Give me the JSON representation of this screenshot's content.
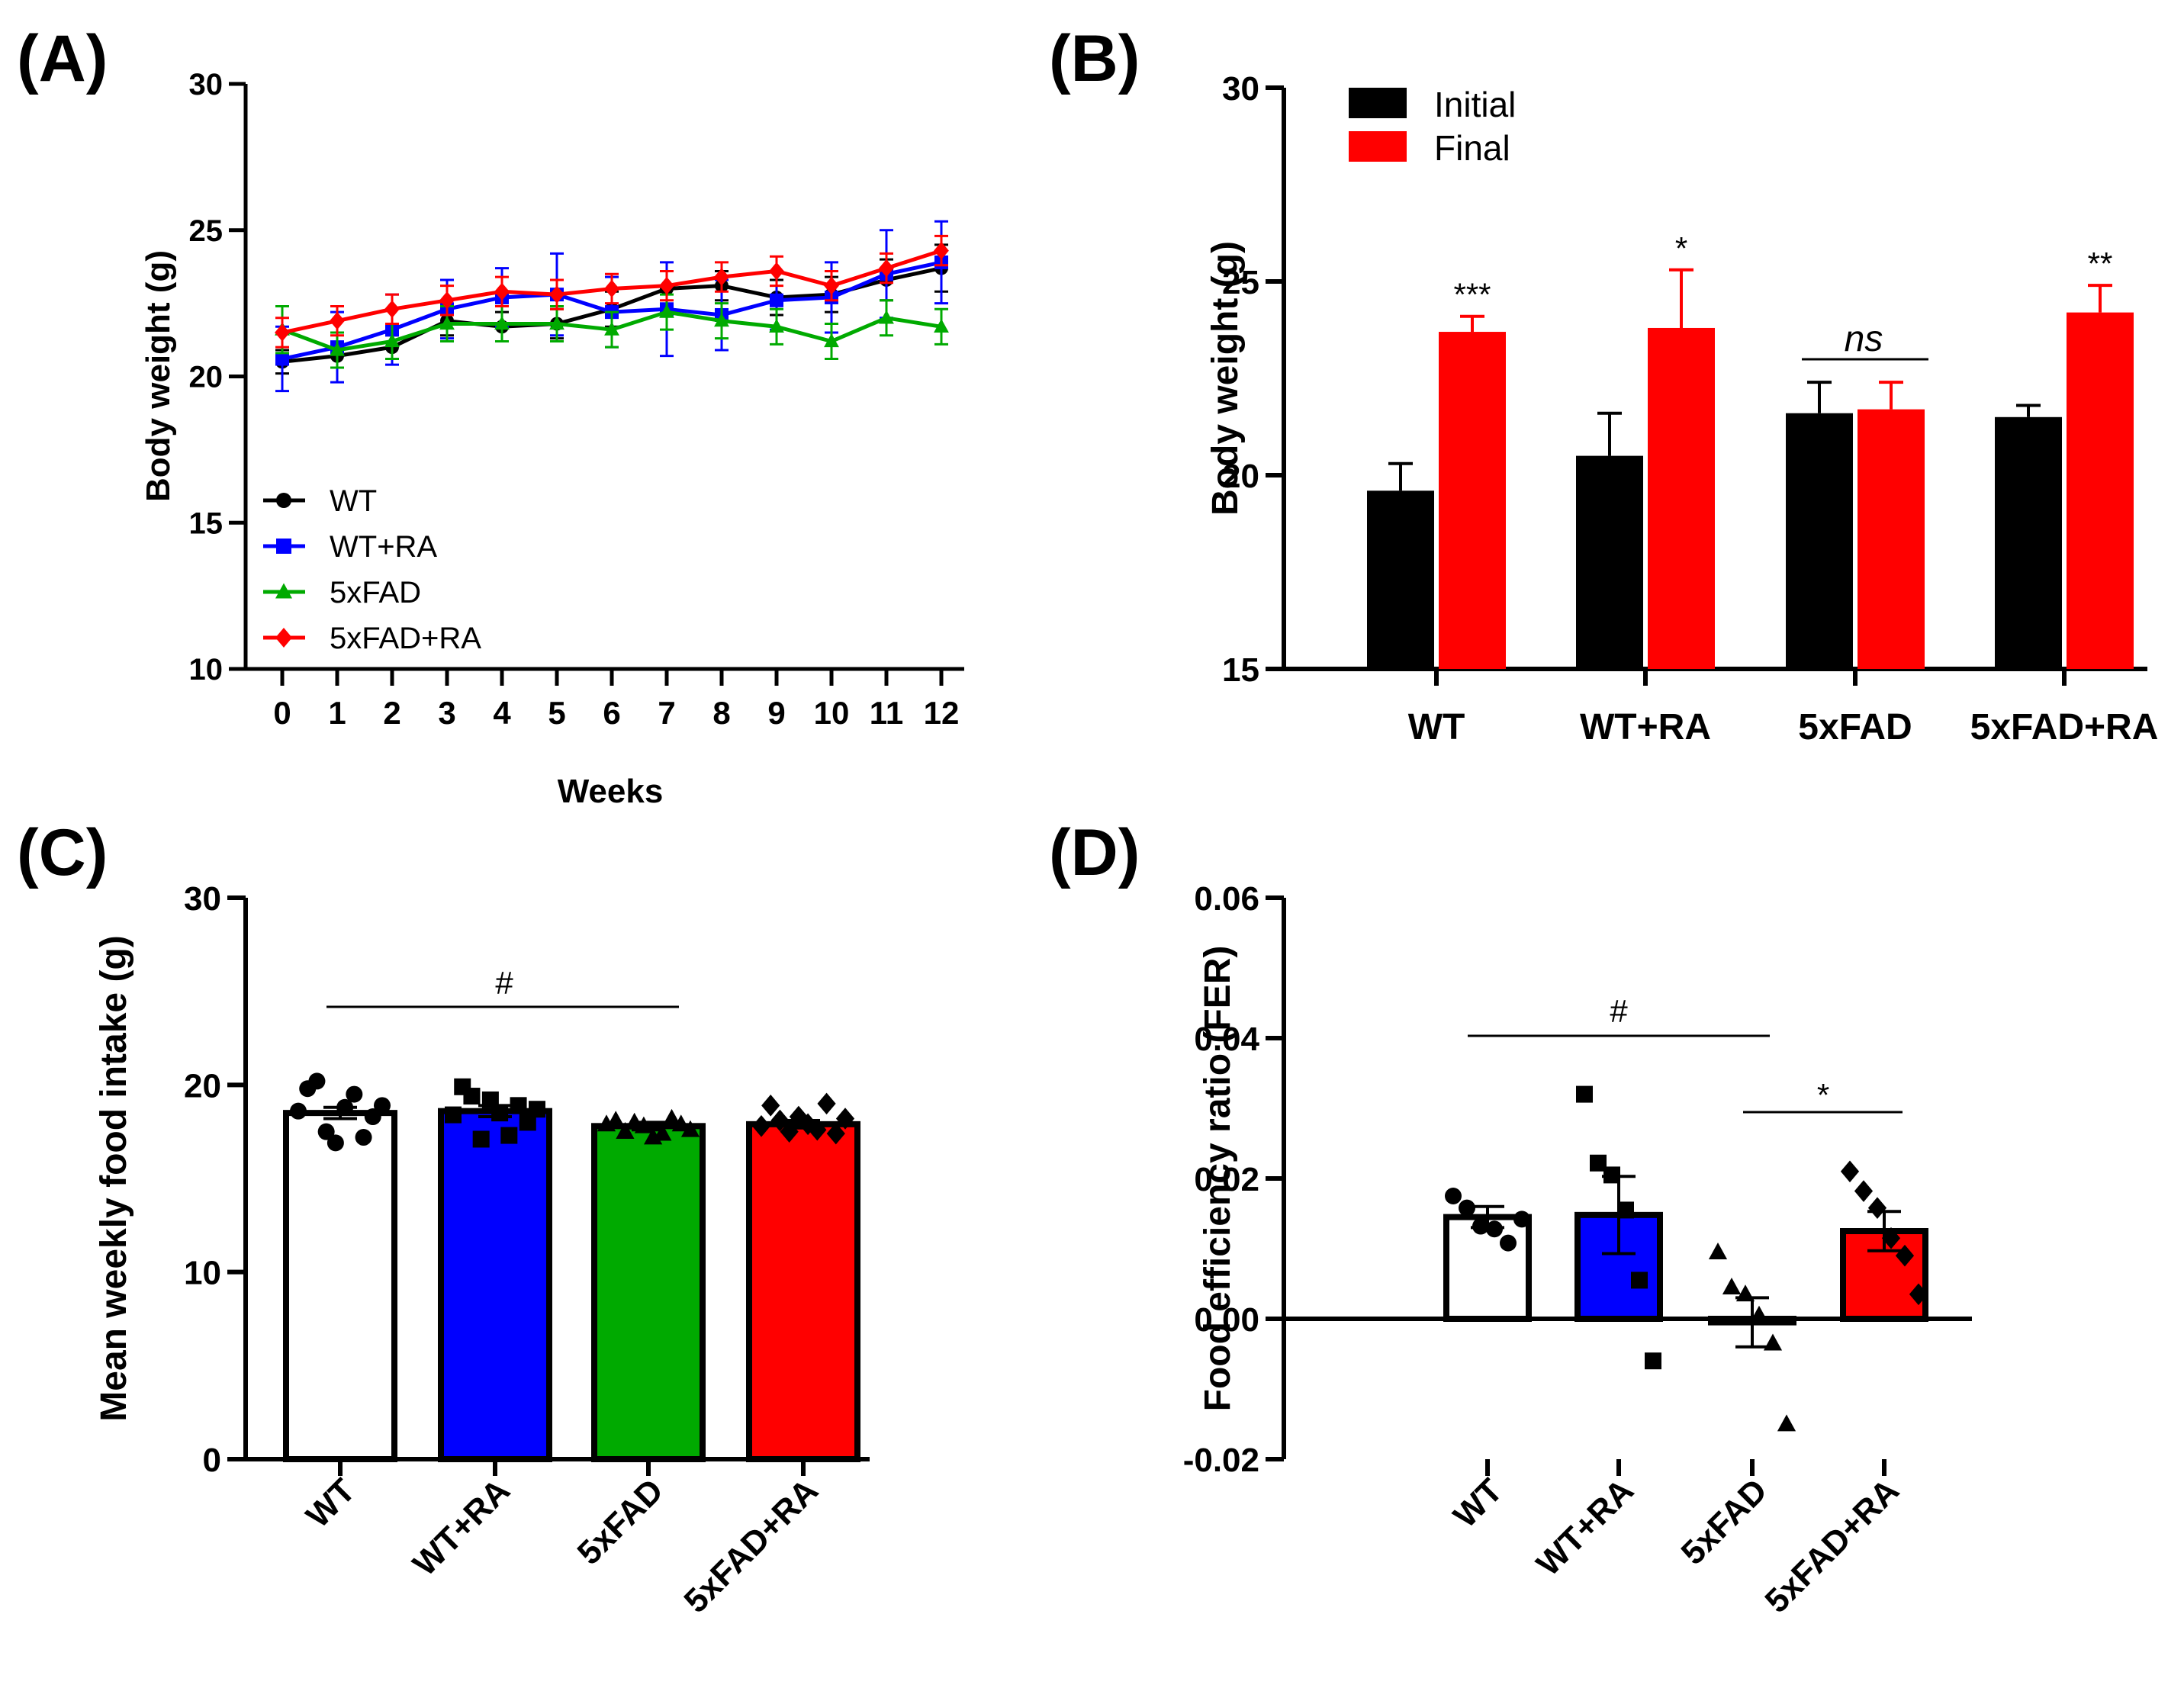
{
  "panels": [
    {
      "label": "(A)"
    },
    {
      "label": "(B)"
    },
    {
      "label": "(C)"
    },
    {
      "label": "(D)"
    }
  ],
  "colors": {
    "WT": "#000000",
    "WT+RA": "#0000ff",
    "5xFAD": "#00aa00",
    "5xFAD+RA": "#ff0000",
    "axis": "#000000"
  },
  "chart_data": [
    {
      "type": "line",
      "panel": "(A)",
      "xlabel": "Weeks",
      "ylabel": "Body weight (g)",
      "x": [
        0,
        1,
        2,
        3,
        4,
        5,
        6,
        7,
        8,
        9,
        10,
        11,
        12
      ],
      "ylim": [
        10,
        30
      ],
      "yticks": [
        10,
        15,
        20,
        25,
        30
      ],
      "legend_position": "bottom-left",
      "series": [
        {
          "name": "WT",
          "color": "#000000",
          "marker": "circle",
          "values": [
            20.5,
            20.7,
            21.0,
            21.9,
            21.7,
            21.8,
            22.3,
            23.0,
            23.1,
            22.7,
            22.8,
            23.3,
            23.7
          ],
          "errors": [
            0.4,
            0.4,
            0.4,
            0.5,
            0.5,
            0.5,
            0.6,
            0.6,
            0.5,
            0.6,
            0.6,
            0.7,
            0.8
          ]
        },
        {
          "name": "WT+RA",
          "color": "#0000ff",
          "marker": "square",
          "values": [
            20.6,
            21.0,
            21.6,
            22.3,
            22.7,
            22.8,
            22.2,
            22.3,
            22.1,
            22.6,
            22.7,
            23.5,
            23.9
          ],
          "errors": [
            1.1,
            1.2,
            1.2,
            1.0,
            1.0,
            1.4,
            1.2,
            1.6,
            1.2,
            1.0,
            1.2,
            1.5,
            1.4
          ]
        },
        {
          "name": "5xFAD",
          "color": "#00aa00",
          "marker": "triangle",
          "values": [
            21.6,
            20.9,
            21.2,
            21.8,
            21.8,
            21.8,
            21.6,
            22.2,
            21.9,
            21.7,
            21.2,
            22.0,
            21.7
          ],
          "errors": [
            0.8,
            0.6,
            0.6,
            0.6,
            0.6,
            0.6,
            0.6,
            0.6,
            0.6,
            0.6,
            0.6,
            0.6,
            0.6
          ]
        },
        {
          "name": "5xFAD+RA",
          "color": "#ff0000",
          "marker": "diamond",
          "values": [
            21.5,
            21.9,
            22.3,
            22.6,
            22.9,
            22.8,
            23.0,
            23.1,
            23.4,
            23.6,
            23.1,
            23.7,
            24.3
          ],
          "errors": [
            0.5,
            0.5,
            0.5,
            0.5,
            0.5,
            0.5,
            0.5,
            0.5,
            0.5,
            0.5,
            0.5,
            0.5,
            0.5
          ]
        }
      ]
    },
    {
      "type": "bar",
      "panel": "(B)",
      "ylabel": "Body weight (g)",
      "categories": [
        "WT",
        "WT+RA",
        "5xFAD",
        "5xFAD+RA"
      ],
      "ylim": [
        15,
        30
      ],
      "yticks": [
        15,
        20,
        25,
        30
      ],
      "legend_position": "top-left",
      "series": [
        {
          "name": "Initial",
          "color": "#000000",
          "values": [
            19.6,
            20.5,
            21.6,
            21.5
          ],
          "errors": [
            0.7,
            1.1,
            0.8,
            0.3
          ]
        },
        {
          "name": "Final",
          "color": "#ff0000",
          "values": [
            23.7,
            23.8,
            21.7,
            24.2
          ],
          "errors": [
            0.4,
            1.5,
            0.7,
            0.7
          ]
        }
      ],
      "annotations": [
        "***",
        "*",
        "ns",
        "**"
      ]
    },
    {
      "type": "bar",
      "panel": "(C)",
      "ylabel": "Mean weekly food intake (g)",
      "categories": [
        "WT",
        "WT+RA",
        "5xFAD",
        "5xFAD+RA"
      ],
      "ylim": [
        0,
        30
      ],
      "yticks": [
        0,
        10,
        20,
        30
      ],
      "colors": [
        "#ffffff",
        "#0000ff",
        "#00aa00",
        "#ff0000"
      ],
      "values": [
        18.5,
        18.6,
        17.8,
        17.9
      ],
      "errors": [
        0.3,
        0.3,
        0.2,
        0.2
      ],
      "points": [
        [
          18.6,
          19.8,
          20.2,
          17.5,
          16.9,
          18.8,
          19.5,
          17.2,
          18.3,
          18.9
        ],
        [
          18.4,
          19.9,
          19.4,
          17.1,
          19.2,
          18.5,
          17.3,
          18.9,
          18.0,
          18.7
        ],
        [
          17.9,
          18.1,
          17.5,
          18.0,
          17.8,
          17.2,
          17.4,
          18.2,
          17.9,
          17.6
        ],
        [
          17.8,
          18.9,
          18.1,
          17.5,
          18.3,
          17.9,
          17.6,
          19.0,
          17.4,
          18.2
        ]
      ],
      "markers": [
        "circle",
        "square",
        "triangle",
        "diamond"
      ],
      "annotations": [
        "#"
      ]
    },
    {
      "type": "bar",
      "panel": "(D)",
      "ylabel": "Food efficiency ratio (FER)",
      "categories": [
        "WT",
        "WT+RA",
        "5xFAD",
        "5xFAD+RA"
      ],
      "ylim": [
        -0.02,
        0.06
      ],
      "yticks": [
        -0.02,
        0.0,
        0.02,
        0.04,
        0.06
      ],
      "ytick_labels": [
        "-0.02",
        "0.00",
        "0.02",
        "0.04",
        "0.06"
      ],
      "colors": [
        "#ffffff",
        "#0000ff",
        "#00aa00",
        "#ff0000"
      ],
      "values": [
        0.0145,
        0.0148,
        -0.0005,
        0.0125
      ],
      "errors": [
        0.0015,
        0.0055,
        0.0035,
        0.0028
      ],
      "points": [
        [
          0.0175,
          0.0158,
          0.0132,
          0.0128,
          0.0108,
          0.0142
        ],
        [
          0.032,
          0.0222,
          0.0205,
          0.0155,
          0.0055,
          -0.006
        ],
        [
          0.0095,
          0.0045,
          0.0035,
          0.0005,
          -0.0035,
          -0.015
        ],
        [
          0.021,
          0.0182,
          0.0158,
          0.0115,
          0.009,
          0.0035
        ]
      ],
      "markers": [
        "circle",
        "square",
        "triangle",
        "diamond"
      ],
      "annotations": [
        "#",
        "*"
      ]
    }
  ]
}
